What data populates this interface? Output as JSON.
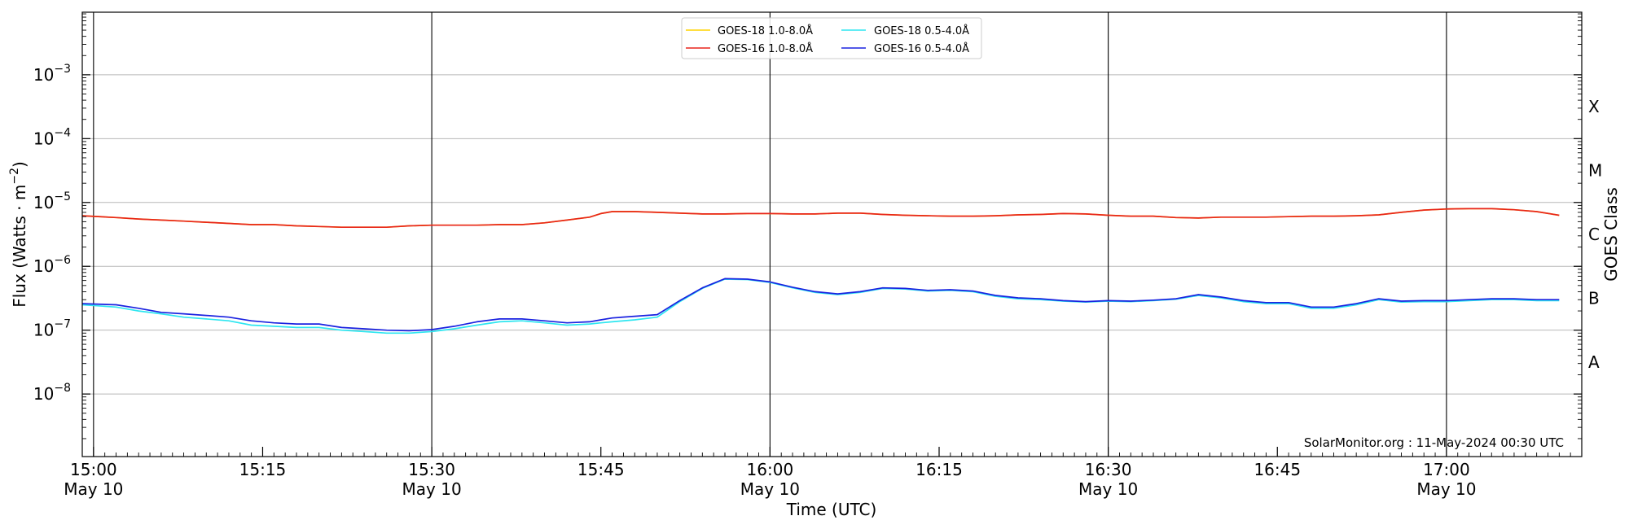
{
  "chart_data": {
    "type": "line",
    "xlabel": "Time (UTC)",
    "ylabel_main": "Flux (Watts · m",
    "ylabel_sup": "−2",
    "ylabel_end": ")",
    "right_label": "GOES Class",
    "credit": "SolarMonitor.org : 11-May-2024 00:30 UTC",
    "xlim": [
      -1,
      132
    ],
    "ylim_log10": [
      -8.98,
      -2.02
    ],
    "log_y": true,
    "grid": "horizontal",
    "x_unit": "minutes after 15:00 UTC, 10 May 2024",
    "x_ticks": [
      {
        "x": 0,
        "time": "15:00",
        "date": "May 10"
      },
      {
        "x": 15,
        "time": "15:15",
        "date": ""
      },
      {
        "x": 30,
        "time": "15:30",
        "date": "May 10"
      },
      {
        "x": 45,
        "time": "15:45",
        "date": ""
      },
      {
        "x": 60,
        "time": "16:00",
        "date": "May 10"
      },
      {
        "x": 75,
        "time": "16:15",
        "date": ""
      },
      {
        "x": 90,
        "time": "16:30",
        "date": "May 10"
      },
      {
        "x": 105,
        "time": "16:45",
        "date": ""
      },
      {
        "x": 120,
        "time": "17:00",
        "date": "May 10"
      }
    ],
    "vlines_x": [
      0,
      30,
      60,
      90,
      120
    ],
    "y_ticks": [
      {
        "exp": -8,
        "base": "10",
        "sup": "−8"
      },
      {
        "exp": -7,
        "base": "10",
        "sup": "−7"
      },
      {
        "exp": -6,
        "base": "10",
        "sup": "−6"
      },
      {
        "exp": -5,
        "base": "10",
        "sup": "−5"
      },
      {
        "exp": -4,
        "base": "10",
        "sup": "−4"
      },
      {
        "exp": -3,
        "base": "10",
        "sup": "−3"
      }
    ],
    "goes_classes": [
      {
        "label": "A",
        "exp": -7.5
      },
      {
        "label": "B",
        "exp": -6.5
      },
      {
        "label": "C",
        "exp": -5.5
      },
      {
        "label": "M",
        "exp": -4.5
      },
      {
        "label": "X",
        "exp": -3.5
      }
    ],
    "legend": {
      "placement": "top-center",
      "columns": 2
    },
    "x": [
      -1,
      2,
      4,
      6,
      8,
      10,
      12,
      14,
      16,
      18,
      20,
      22,
      24,
      26,
      28,
      30,
      32,
      34,
      36,
      38,
      40,
      42,
      44,
      45,
      46,
      48,
      50,
      52,
      54,
      56,
      58,
      60,
      62,
      64,
      66,
      68,
      70,
      72,
      74,
      76,
      78,
      80,
      82,
      84,
      86,
      88,
      90,
      92,
      94,
      96,
      98,
      100,
      102,
      104,
      106,
      108,
      110,
      112,
      114,
      116,
      118,
      120,
      122,
      124,
      126,
      128,
      130
    ],
    "series": [
      {
        "name": "GOES-18 1.0-8.0Å",
        "color": "#ffd400",
        "values": [
          6.2e-06,
          5.8e-06,
          5.5e-06,
          5.3e-06,
          5.1e-06,
          4.9e-06,
          4.7e-06,
          4.5e-06,
          4.5e-06,
          4.3e-06,
          4.2e-06,
          4.1e-06,
          4.1e-06,
          4.1e-06,
          4.3e-06,
          4.4e-06,
          4.4e-06,
          4.4e-06,
          4.5e-06,
          4.5e-06,
          4.8e-06,
          5.3e-06,
          5.9e-06,
          6.7e-06,
          7.2e-06,
          7.2e-06,
          7e-06,
          6.8e-06,
          6.6e-06,
          6.6e-06,
          6.7e-06,
          6.7e-06,
          6.6e-06,
          6.6e-06,
          6.8e-06,
          6.8e-06,
          6.5e-06,
          6.3e-06,
          6.2e-06,
          6.1e-06,
          6.1e-06,
          6.2e-06,
          6.4e-06,
          6.5e-06,
          6.7e-06,
          6.6e-06,
          6.3e-06,
          6.1e-06,
          6.1e-06,
          5.8e-06,
          5.7e-06,
          5.9e-06,
          5.9e-06,
          5.9e-06,
          6e-06,
          6.1e-06,
          6.1e-06,
          6.2e-06,
          6.4e-06,
          7e-06,
          7.6e-06,
          7.9e-06,
          8e-06,
          8e-06,
          7.7e-06,
          7.2e-06,
          6.3e-06
        ]
      },
      {
        "name": "GOES-16 1.0-8.0Å",
        "color": "#e8251b",
        "values": [
          6.2e-06,
          5.8e-06,
          5.5e-06,
          5.3e-06,
          5.1e-06,
          4.9e-06,
          4.7e-06,
          4.5e-06,
          4.5e-06,
          4.3e-06,
          4.2e-06,
          4.1e-06,
          4.1e-06,
          4.1e-06,
          4.3e-06,
          4.4e-06,
          4.4e-06,
          4.4e-06,
          4.5e-06,
          4.5e-06,
          4.8e-06,
          5.3e-06,
          5.9e-06,
          6.7e-06,
          7.2e-06,
          7.2e-06,
          7e-06,
          6.8e-06,
          6.6e-06,
          6.6e-06,
          6.7e-06,
          6.7e-06,
          6.6e-06,
          6.6e-06,
          6.8e-06,
          6.8e-06,
          6.5e-06,
          6.3e-06,
          6.2e-06,
          6.1e-06,
          6.1e-06,
          6.2e-06,
          6.4e-06,
          6.5e-06,
          6.7e-06,
          6.6e-06,
          6.3e-06,
          6.1e-06,
          6.1e-06,
          5.8e-06,
          5.7e-06,
          5.9e-06,
          5.9e-06,
          5.9e-06,
          6e-06,
          6.1e-06,
          6.1e-06,
          6.2e-06,
          6.4e-06,
          7e-06,
          7.6e-06,
          7.9e-06,
          8e-06,
          8e-06,
          7.7e-06,
          7.2e-06,
          6.3e-06
        ]
      },
      {
        "name": "GOES-18 0.5-4.0Å",
        "color": "#2ee6f0",
        "values": [
          2.5e-07,
          2.3e-07,
          2e-07,
          1.8e-07,
          1.6e-07,
          1.5e-07,
          1.4e-07,
          1.2e-07,
          1.15e-07,
          1.1e-07,
          1.1e-07,
          1e-07,
          9.5e-08,
          9e-08,
          9e-08,
          9.5e-08,
          1.05e-07,
          1.2e-07,
          1.35e-07,
          1.4e-07,
          1.3e-07,
          1.2e-07,
          1.25e-07,
          1.3e-07,
          1.35e-07,
          1.45e-07,
          1.6e-07,
          2.8e-07,
          4.5e-07,
          6.3e-07,
          6.2e-07,
          5.6e-07,
          4.6e-07,
          3.9e-07,
          3.6e-07,
          3.9e-07,
          4.5e-07,
          4.4e-07,
          4.1e-07,
          4.2e-07,
          4e-07,
          3.4e-07,
          3.1e-07,
          3e-07,
          2.85e-07,
          2.75e-07,
          2.85e-07,
          2.8e-07,
          2.9e-07,
          3.05e-07,
          3.5e-07,
          3.2e-07,
          2.8e-07,
          2.6e-07,
          2.6e-07,
          2.2e-07,
          2.2e-07,
          2.5e-07,
          3e-07,
          2.75e-07,
          2.8e-07,
          2.8e-07,
          2.9e-07,
          3e-07,
          3e-07,
          2.9e-07,
          2.9e-07
        ]
      },
      {
        "name": "GOES-16 0.5-4.0Å",
        "color": "#1a22e0",
        "values": [
          2.6e-07,
          2.5e-07,
          2.2e-07,
          1.9e-07,
          1.8e-07,
          1.7e-07,
          1.6e-07,
          1.4e-07,
          1.3e-07,
          1.25e-07,
          1.25e-07,
          1.1e-07,
          1.05e-07,
          1e-07,
          9.8e-08,
          1.02e-07,
          1.15e-07,
          1.35e-07,
          1.5e-07,
          1.5e-07,
          1.4e-07,
          1.3e-07,
          1.35e-07,
          1.45e-07,
          1.55e-07,
          1.65e-07,
          1.75e-07,
          2.9e-07,
          4.6e-07,
          6.4e-07,
          6.3e-07,
          5.7e-07,
          4.7e-07,
          4e-07,
          3.7e-07,
          4e-07,
          4.6e-07,
          4.5e-07,
          4.2e-07,
          4.3e-07,
          4.1e-07,
          3.5e-07,
          3.2e-07,
          3.1e-07,
          2.9e-07,
          2.8e-07,
          2.9e-07,
          2.85e-07,
          2.95e-07,
          3.1e-07,
          3.6e-07,
          3.3e-07,
          2.9e-07,
          2.7e-07,
          2.7e-07,
          2.3e-07,
          2.3e-07,
          2.6e-07,
          3.1e-07,
          2.85e-07,
          2.9e-07,
          2.9e-07,
          3e-07,
          3.1e-07,
          3.1e-07,
          3e-07,
          3e-07
        ]
      }
    ]
  }
}
